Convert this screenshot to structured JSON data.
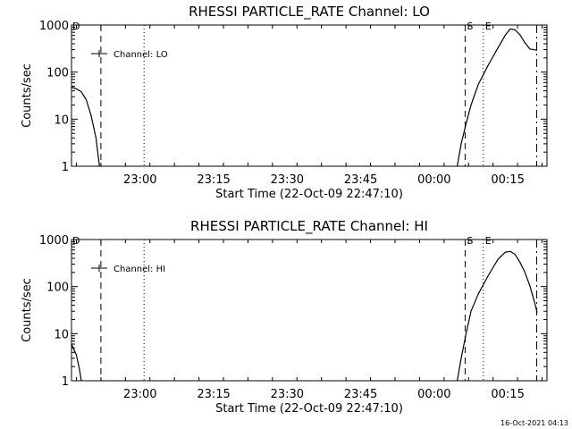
{
  "footer": {
    "timestamp": "16-Oct-2021 04:13"
  },
  "chart_data": [
    {
      "type": "line",
      "title": "RHESSI PARTICLE_RATE Channel: LO",
      "xlabel": "Start Time (22-Oct-09 22:47:10)",
      "ylabel": "Counts/sec",
      "yscale": "log",
      "ylim": [
        1,
        1000
      ],
      "xlim": [
        -1,
        96
      ],
      "x_unit": "minutes after start time",
      "x_tick_values": [
        13,
        28,
        43,
        58,
        73,
        88
      ],
      "x_tick_labels": [
        "23:00",
        "23:15",
        "23:30",
        "23:45",
        "00:00",
        "00:15"
      ],
      "y_tick_values": [
        1,
        10,
        100,
        1000
      ],
      "y_tick_labels": [
        "1",
        "10",
        "100",
        "1000"
      ],
      "legend": {
        "label": "Channel: LO",
        "position": "top-left"
      },
      "markers": [
        {
          "type": "dashed",
          "x": 5,
          "label": ""
        },
        {
          "type": "dotted",
          "x": 13.8,
          "label": ""
        },
        {
          "type": "dashed",
          "x": 79.3,
          "label": "S"
        },
        {
          "type": "dotted",
          "x": 83,
          "label": "E"
        },
        {
          "type": "dashdot",
          "x": 93.9,
          "label": ""
        }
      ],
      "corner_label": "D",
      "series": [
        {
          "points": [
            [
              -1,
              48
            ],
            [
              0,
              44
            ],
            [
              1,
              38
            ],
            [
              2,
              26
            ],
            [
              3,
              12
            ],
            [
              4,
              4
            ],
            [
              4.7,
              1
            ]
          ]
        },
        {
          "points": [
            [
              77.7,
              1
            ],
            [
              78.5,
              3
            ],
            [
              79.5,
              8
            ],
            [
              80.5,
              20
            ],
            [
              82,
              55
            ],
            [
              84,
              140
            ],
            [
              86,
              330
            ],
            [
              87.5,
              610
            ],
            [
              88.5,
              830
            ],
            [
              89.5,
              790
            ],
            [
              90.5,
              620
            ],
            [
              91.5,
              420
            ],
            [
              92.5,
              310
            ],
            [
              94,
              290
            ]
          ]
        }
      ]
    },
    {
      "type": "line",
      "title": "RHESSI PARTICLE_RATE Channel: HI",
      "xlabel": "Start Time (22-Oct-09 22:47:10)",
      "ylabel": "Counts/sec",
      "yscale": "log",
      "ylim": [
        1,
        1000
      ],
      "xlim": [
        -1,
        96
      ],
      "x_unit": "minutes after start time",
      "x_tick_values": [
        13,
        28,
        43,
        58,
        73,
        88
      ],
      "x_tick_labels": [
        "23:00",
        "23:15",
        "23:30",
        "23:45",
        "00:00",
        "00:15"
      ],
      "y_tick_values": [
        1,
        10,
        100,
        1000
      ],
      "y_tick_labels": [
        "1",
        "10",
        "100",
        "1000"
      ],
      "legend": {
        "label": "Channel: HI",
        "position": "top-left"
      },
      "markers": [
        {
          "type": "dashed",
          "x": 5,
          "label": ""
        },
        {
          "type": "dotted",
          "x": 13.8,
          "label": ""
        },
        {
          "type": "dashed",
          "x": 79.3,
          "label": "S"
        },
        {
          "type": "dotted",
          "x": 83,
          "label": "E"
        },
        {
          "type": "dashdot",
          "x": 93.9,
          "label": ""
        }
      ],
      "corner_label": "D",
      "series": [
        {
          "points": [
            [
              -1,
              6
            ],
            [
              0,
              3.5
            ],
            [
              0.6,
              1.8
            ],
            [
              1,
              1
            ]
          ]
        },
        {
          "points": [
            [
              77.7,
              1
            ],
            [
              78.5,
              3
            ],
            [
              79.5,
              10
            ],
            [
              80.5,
              30
            ],
            [
              82,
              70
            ],
            [
              84,
              170
            ],
            [
              86,
              380
            ],
            [
              87.5,
              540
            ],
            [
              88.5,
              560
            ],
            [
              89.5,
              480
            ],
            [
              90.5,
              330
            ],
            [
              91.5,
              200
            ],
            [
              92.5,
              105
            ],
            [
              93.5,
              45
            ],
            [
              94,
              28
            ]
          ]
        }
      ]
    }
  ]
}
